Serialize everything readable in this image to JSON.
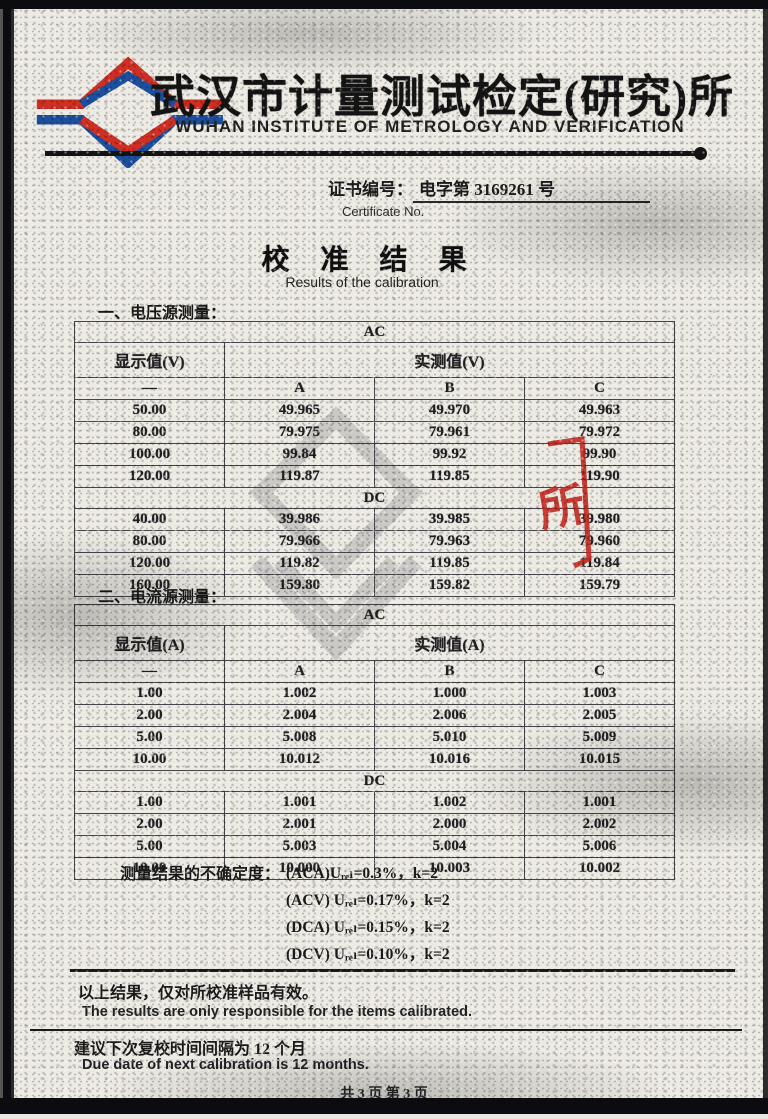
{
  "header": {
    "org_cn": "武汉市计量测试检定(研究)所",
    "org_en": "WUHAN INSTITUTE OF METROLOGY AND VERIFICATION",
    "logo_red": "#d22f23",
    "logo_blue": "#1c4f9e"
  },
  "certificate": {
    "label_cn": "证书编号：",
    "number": "电字第 3169261 号",
    "label_en": "Certificate No."
  },
  "doc_title": {
    "cn": "校 准 结 果",
    "en": "Results of the calibration"
  },
  "voltage_section": {
    "heading": "一、电压源测量：",
    "ac_label": "AC",
    "dc_label": "DC",
    "unit_display": "显示值(V)",
    "unit_measured": "实测值(V)",
    "dash": "—",
    "cols": [
      "A",
      "B",
      "C"
    ],
    "ac_rows": [
      [
        "50.00",
        "49.965",
        "49.970",
        "49.963"
      ],
      [
        "80.00",
        "79.975",
        "79.961",
        "79.972"
      ],
      [
        "100.00",
        "99.84",
        "99.92",
        "99.90"
      ],
      [
        "120.00",
        "119.87",
        "119.85",
        "119.90"
      ]
    ],
    "dc_rows": [
      [
        "40.00",
        "39.986",
        "39.985",
        "39.980"
      ],
      [
        "80.00",
        "79.966",
        "79.963",
        "79.960"
      ],
      [
        "120.00",
        "119.82",
        "119.85",
        "119.84"
      ],
      [
        "160.00",
        "159.80",
        "159.82",
        "159.79"
      ]
    ]
  },
  "current_section": {
    "heading": "二、电流源测量：",
    "ac_label": "AC",
    "dc_label": "DC",
    "unit_display": "显示值(A)",
    "unit_measured": "实测值(A)",
    "dash": "—",
    "cols": [
      "A",
      "B",
      "C"
    ],
    "ac_rows": [
      [
        "1.00",
        "1.002",
        "1.000",
        "1.003"
      ],
      [
        "2.00",
        "2.004",
        "2.006",
        "2.005"
      ],
      [
        "5.00",
        "5.008",
        "5.010",
        "5.009"
      ],
      [
        "10.00",
        "10.012",
        "10.016",
        "10.015"
      ]
    ],
    "dc_rows": [
      [
        "1.00",
        "1.001",
        "1.002",
        "1.001"
      ],
      [
        "2.00",
        "2.001",
        "2.000",
        "2.002"
      ],
      [
        "5.00",
        "5.003",
        "5.004",
        "5.006"
      ],
      [
        "10.00",
        "10.000",
        "10.003",
        "10.002"
      ]
    ]
  },
  "uncertainty": {
    "label": "测量结果的不确定度：",
    "lines": [
      "(ACA)Uᵣₑₗ=0.3%，k=2",
      "(ACV) Uᵣₑₗ=0.17%，k=2",
      "(DCA) Uᵣₑₗ=0.15%，k=2",
      "(DCV) Uᵣₑₗ=0.10%，k=2"
    ]
  },
  "footer": {
    "validity_cn": "以上结果，仅对所校准样品有效。",
    "validity_en": "The results are only responsible for the items calibrated.",
    "recal_cn": "建议下次复校时间间隔为 12 个月",
    "recal_en": "Due date of next calibration is   12   months.",
    "page_info": "共 3 页 第 3 页"
  },
  "stamp": {
    "char": "所",
    "color": "#c4251c"
  },
  "watermark_color": "#8d8d8d"
}
